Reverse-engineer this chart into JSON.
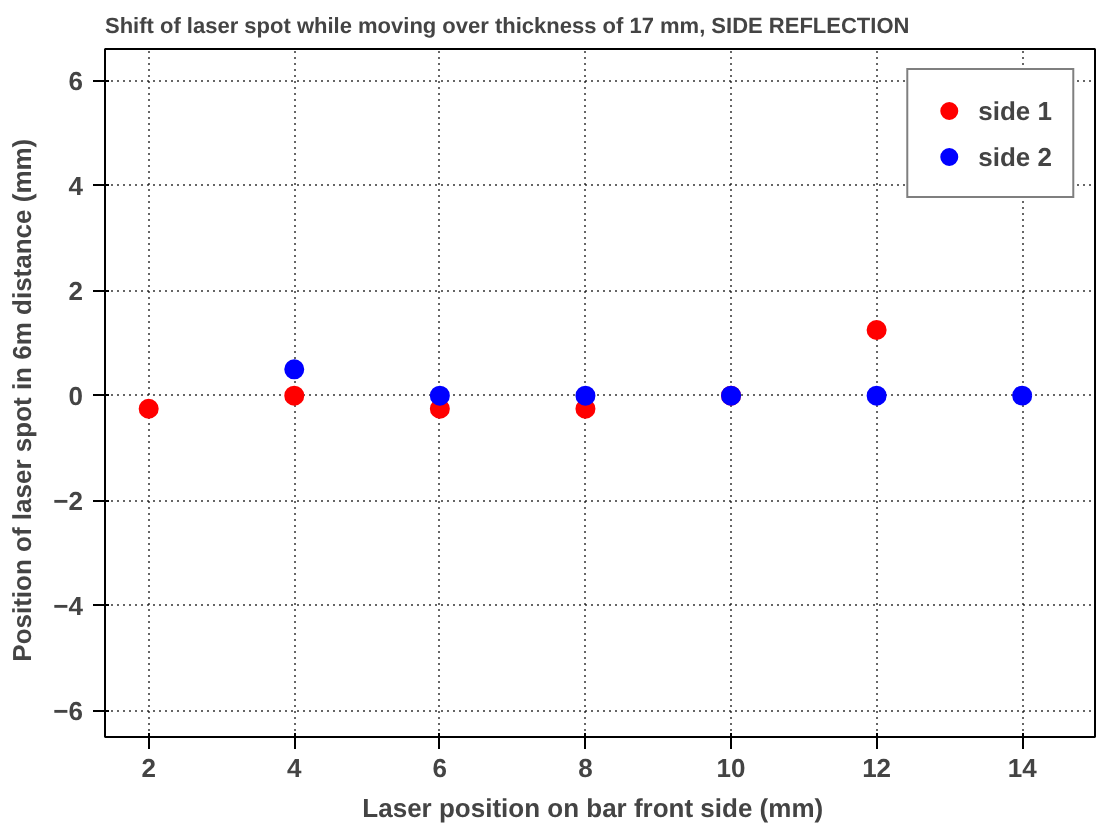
{
  "chart_data": {
    "type": "scatter",
    "title": "Shift of laser spot while moving over thickness of 17 mm, SIDE REFLECTION",
    "xlabel": "Laser position on bar front side   (mm)",
    "ylabel": "Position of laser spot in 6m distance   (mm)",
    "series": [
      {
        "name": "side 1",
        "color": "#ff0000",
        "x": [
          2,
          4,
          6,
          8,
          10,
          12
        ],
        "values": [
          -0.25,
          0,
          -0.25,
          -0.25,
          0,
          1.25
        ]
      },
      {
        "name": "side 2",
        "color": "#0000ff",
        "x": [
          4,
          6,
          8,
          10,
          12,
          14
        ],
        "values": [
          0.5,
          0,
          0,
          0,
          0,
          0
        ]
      }
    ],
    "xlim": [
      1.4,
      15
    ],
    "ylim": [
      -6.5,
      6.6
    ],
    "xticks": [
      2,
      4,
      6,
      8,
      10,
      12,
      14
    ],
    "yticks": [
      -6,
      -4,
      -2,
      0,
      2,
      4,
      6
    ],
    "grid": true,
    "legend": "top right",
    "marker": "circle"
  }
}
